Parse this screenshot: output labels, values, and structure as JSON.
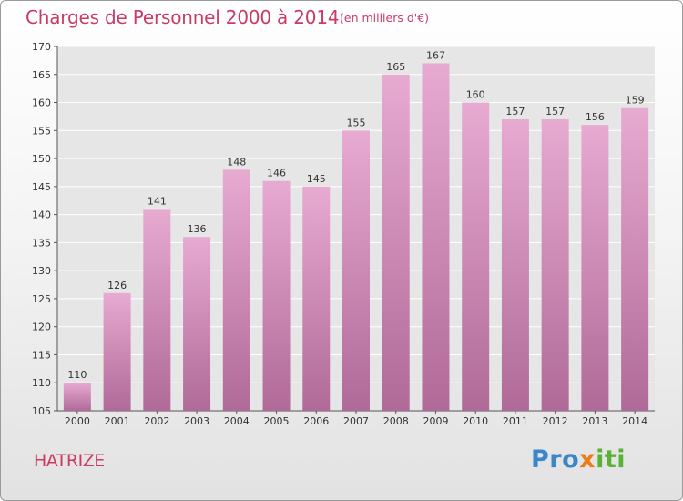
{
  "header": {
    "title": "Charges de Personnel 2000 à 2014",
    "subtitle": "(en milliers d'€)"
  },
  "footer": {
    "commune": "HATRIZE",
    "brand_part1": "Pro",
    "brand_part2": "x",
    "brand_part3": "iti"
  },
  "colors": {
    "title": "#cc3a64",
    "bar_top": "#e7aad1",
    "bar_bottom": "#b06a98",
    "grid": "#ffffff"
  },
  "chart_data": {
    "type": "bar",
    "title": "Charges de Personnel 2000 à 2014",
    "subtitle": "(en milliers d'€)",
    "categories": [
      "2000",
      "2001",
      "2002",
      "2003",
      "2004",
      "2005",
      "2006",
      "2007",
      "2008",
      "2009",
      "2010",
      "2011",
      "2012",
      "2013",
      "2014"
    ],
    "values": [
      110,
      126,
      141,
      136,
      148,
      146,
      145,
      155,
      165,
      167,
      160,
      157,
      157,
      156,
      159
    ],
    "ylim": [
      105,
      170
    ],
    "yticks": [
      105,
      110,
      115,
      120,
      125,
      130,
      135,
      140,
      145,
      150,
      155,
      160,
      165,
      170
    ],
    "grid": true,
    "legend": "none",
    "data_labels": true
  }
}
